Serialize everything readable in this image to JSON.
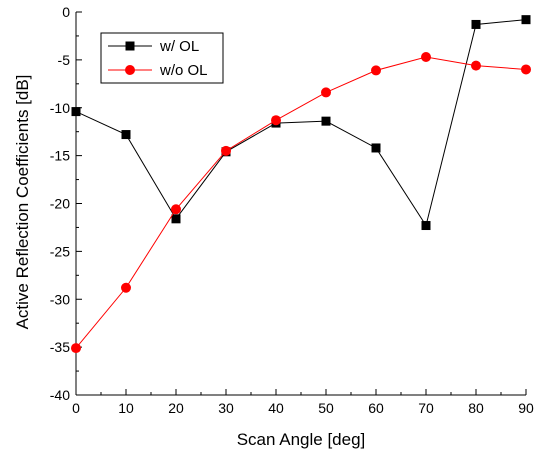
{
  "chart_data": {
    "type": "line",
    "xlabel": "Scan Angle [deg]",
    "ylabel": "Active Reflection Coefficients [dB]",
    "xlim": [
      0,
      90
    ],
    "ylim": [
      -40,
      0
    ],
    "x_ticks": [
      "0",
      "10",
      "20",
      "30",
      "40",
      "50",
      "60",
      "70",
      "80",
      "90"
    ],
    "y_ticks": [
      "0",
      "-5",
      "-10",
      "-15",
      "-20",
      "-25",
      "-30",
      "-35",
      "-40"
    ],
    "grid": false,
    "legend_position": "top-left",
    "x": [
      0,
      10,
      20,
      30,
      40,
      50,
      60,
      70,
      80,
      90
    ],
    "series": [
      {
        "name": "w/ OL",
        "color": "#000000",
        "marker": "square",
        "values": [
          -10.4,
          -12.8,
          -21.6,
          -14.6,
          -11.6,
          -11.4,
          -14.2,
          -22.3,
          -1.3,
          -0.8
        ]
      },
      {
        "name": "w/o OL",
        "color": "#ff0000",
        "marker": "circle",
        "values": [
          -35.1,
          -28.8,
          -20.6,
          -14.5,
          -11.3,
          -8.4,
          -6.1,
          -4.7,
          -5.6,
          -6.0
        ]
      }
    ]
  }
}
